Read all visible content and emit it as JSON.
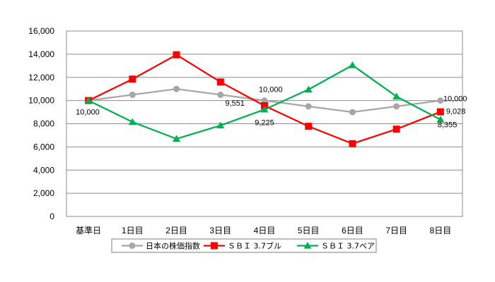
{
  "chart_data": {
    "type": "line",
    "categories": [
      "基準日",
      "1日目",
      "2日目",
      "3日目",
      "4日目",
      "5日目",
      "6日目",
      "7日目",
      "8日目"
    ],
    "ylim": [
      0,
      16000
    ],
    "yticks": [
      0,
      2000,
      4000,
      6000,
      8000,
      10000,
      12000,
      14000,
      16000
    ],
    "ytick_labels": [
      "0",
      "2,000",
      "4,000",
      "6,000",
      "8,000",
      "10,000",
      "12,000",
      "14,000",
      "16,000"
    ],
    "grid": true,
    "legend_position": "bottom",
    "series": [
      {
        "name": "日本の株価指数",
        "color": "#A6A6A6",
        "marker": "circle",
        "values": [
          10000,
          10500,
          11000,
          10500,
          10000,
          9500,
          9000,
          9500,
          10000
        ]
      },
      {
        "name": "ＳＢＩ 3.7ブル",
        "color": "#FF0000",
        "marker": "square",
        "values": [
          10000,
          11850,
          13950,
          11600,
          9551,
          7780,
          6280,
          7530,
          9028
        ]
      },
      {
        "name": "ＳＢＩ 3.7ベア",
        "color": "#00B050",
        "marker": "triangle",
        "values": [
          10000,
          8150,
          6700,
          7850,
          9225,
          10950,
          13050,
          10350,
          8355
        ]
      }
    ],
    "annotations": [
      {
        "text": "10,000",
        "series": 0,
        "index": 0
      },
      {
        "text": "10,000",
        "series": 0,
        "index": 4
      },
      {
        "text": "9,551",
        "series": 1,
        "index": 4
      },
      {
        "text": "9,225",
        "series": 2,
        "index": 4
      },
      {
        "text": "10,000",
        "series": 0,
        "index": 8
      },
      {
        "text": "9,028",
        "series": 1,
        "index": 8
      },
      {
        "text": "8,355",
        "series": 2,
        "index": 8
      }
    ]
  }
}
